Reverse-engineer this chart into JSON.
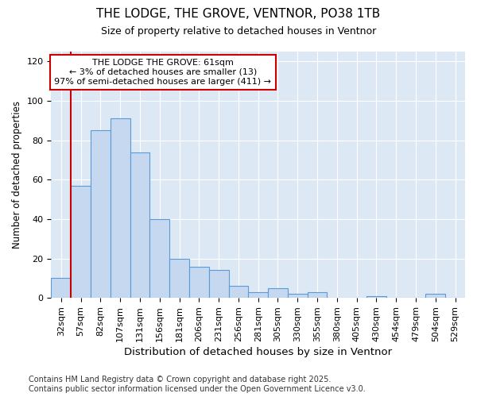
{
  "title": "THE LODGE, THE GROVE, VENTNOR, PO38 1TB",
  "subtitle": "Size of property relative to detached houses in Ventnor",
  "xlabel": "Distribution of detached houses by size in Ventnor",
  "ylabel": "Number of detached properties",
  "categories": [
    "32sqm",
    "57sqm",
    "82sqm",
    "107sqm",
    "131sqm",
    "156sqm",
    "181sqm",
    "206sqm",
    "231sqm",
    "256sqm",
    "281sqm",
    "305sqm",
    "330sqm",
    "355sqm",
    "380sqm",
    "405sqm",
    "430sqm",
    "454sqm",
    "479sqm",
    "504sqm",
    "529sqm"
  ],
  "values": [
    10,
    57,
    85,
    91,
    74,
    40,
    20,
    16,
    14,
    6,
    3,
    5,
    2,
    3,
    0,
    0,
    1,
    0,
    0,
    2,
    0
  ],
  "bar_color": "#c5d8f0",
  "bar_edge_color": "#5b9bd5",
  "bar_edge_width": 0.8,
  "vline_color": "#cc0000",
  "vline_x": 0.5,
  "annotation_text": "THE LODGE THE GROVE: 61sqm\n← 3% of detached houses are smaller (13)\n97% of semi-detached houses are larger (411) →",
  "annotation_box_color": "white",
  "annotation_box_edge_color": "#cc0000",
  "ylim": [
    0,
    125
  ],
  "yticks": [
    0,
    20,
    40,
    60,
    80,
    100,
    120
  ],
  "fig_bg_color": "#ffffff",
  "plot_bg_color": "#dde8f5",
  "grid_color": "#ffffff",
  "footer": "Contains HM Land Registry data © Crown copyright and database right 2025.\nContains public sector information licensed under the Open Government Licence v3.0.",
  "title_fontsize": 11,
  "subtitle_fontsize": 9,
  "xlabel_fontsize": 9.5,
  "ylabel_fontsize": 8.5,
  "tick_fontsize": 8,
  "annotation_fontsize": 8,
  "footer_fontsize": 7
}
